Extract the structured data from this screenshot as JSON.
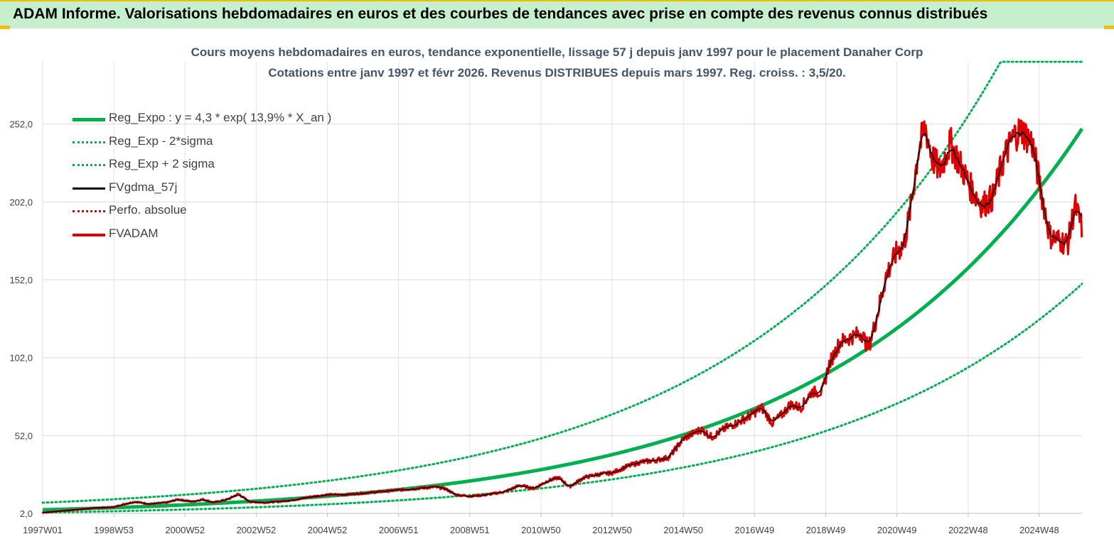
{
  "header": {
    "title": "ADAM Informe. Valorisations hebdomadaires en euros et des courbes de tendances avec prise en compte des revenus connus distribués"
  },
  "chart_data": {
    "type": "line",
    "title": "Cours moyens hebdomadaires en euros, tendance exponentielle, lissage 57 j depuis janv 1997 pour le placement Danaher Corp",
    "subtitle": "Cotations entre janv 1997 et févr 2026. Revenus DISTRIBUES depuis mars 1997. Reg. croiss. : 3,5/20.",
    "x_ticks": [
      "1997W01",
      "1998W53",
      "2000W52",
      "2002W52",
      "2004W52",
      "2006W51",
      "2008W51",
      "2010W50",
      "2012W50",
      "2014W50",
      "2016W49",
      "2018W49",
      "2020W49",
      "2022W48",
      "2024W48"
    ],
    "x_range": [
      1997.0,
      2026.2
    ],
    "y_ticks": [
      "2,0",
      "52,0",
      "102,0",
      "152,0",
      "202,0",
      "252,0"
    ],
    "y_range": [
      2.0,
      292.0
    ],
    "grid": true,
    "legend_position": "top-left",
    "regression": {
      "a": 4.3,
      "rate": 0.139,
      "sigma_factor": 2
    },
    "series": [
      {
        "name": "Reg_Expo : y = 4,3 * exp( 13,9% *  X_an )",
        "color": "#00b050",
        "style": "solid-thick"
      },
      {
        "name": "Reg_Exp - 2*sigma",
        "color": "#00b050",
        "style": "dotted"
      },
      {
        "name": "Reg_Exp + 2 sigma",
        "color": "#00b050",
        "style": "dotted"
      },
      {
        "name": "FVgdma_57j",
        "color": "#000000",
        "style": "solid-thin"
      },
      {
        "name": "Perfo. absolue",
        "color": "#e00000",
        "style": "dotted"
      },
      {
        "name": "FVADAM",
        "color": "#e00000",
        "style": "solid",
        "points": [
          [
            1997.0,
            2.5
          ],
          [
            1997.5,
            3.5
          ],
          [
            1998.0,
            4.5
          ],
          [
            1998.5,
            5.5
          ],
          [
            1999.0,
            6.0
          ],
          [
            1999.3,
            8.0
          ],
          [
            1999.6,
            9.5
          ],
          [
            2000.0,
            8.0
          ],
          [
            2000.5,
            9.0
          ],
          [
            2000.8,
            11.0
          ],
          [
            2001.2,
            9.5
          ],
          [
            2001.5,
            11.0
          ],
          [
            2001.8,
            9.0
          ],
          [
            2002.2,
            11.0
          ],
          [
            2002.5,
            14.5
          ],
          [
            2002.8,
            9.5
          ],
          [
            2003.2,
            9.0
          ],
          [
            2003.6,
            9.5
          ],
          [
            2004.0,
            10.5
          ],
          [
            2004.5,
            12.5
          ],
          [
            2005.0,
            14.0
          ],
          [
            2005.5,
            14.0
          ],
          [
            2006.0,
            15.0
          ],
          [
            2006.5,
            16.0
          ],
          [
            2007.0,
            17.0
          ],
          [
            2007.5,
            18.0
          ],
          [
            2008.0,
            19.0
          ],
          [
            2008.3,
            18.0
          ],
          [
            2008.6,
            14.0
          ],
          [
            2009.0,
            13.0
          ],
          [
            2009.5,
            14.0
          ],
          [
            2010.0,
            16.0
          ],
          [
            2010.4,
            20.0
          ],
          [
            2010.8,
            18.0
          ],
          [
            2011.2,
            23.0
          ],
          [
            2011.5,
            25.0
          ],
          [
            2011.8,
            19.0
          ],
          [
            2012.2,
            25.0
          ],
          [
            2012.6,
            27.0
          ],
          [
            2013.0,
            28.0
          ],
          [
            2013.4,
            32.0
          ],
          [
            2013.8,
            35.0
          ],
          [
            2014.2,
            36.0
          ],
          [
            2014.6,
            38.0
          ],
          [
            2015.0,
            50.0
          ],
          [
            2015.5,
            56.0
          ],
          [
            2015.8,
            51.0
          ],
          [
            2016.2,
            57.0
          ],
          [
            2016.5,
            60.0
          ],
          [
            2016.9,
            65.0
          ],
          [
            2017.2,
            70.0
          ],
          [
            2017.5,
            60.0
          ],
          [
            2017.8,
            66.0
          ],
          [
            2018.0,
            72.0
          ],
          [
            2018.3,
            70.0
          ],
          [
            2018.6,
            80.0
          ],
          [
            2018.9,
            80.0
          ],
          [
            2019.1,
            98.0
          ],
          [
            2019.4,
            112.0
          ],
          [
            2019.7,
            115.0
          ],
          [
            2020.0,
            118.0
          ],
          [
            2020.2,
            108.0
          ],
          [
            2020.4,
            125.0
          ],
          [
            2020.7,
            155.0
          ],
          [
            2021.0,
            170.0
          ],
          [
            2021.2,
            175.0
          ],
          [
            2021.4,
            200.0
          ],
          [
            2021.6,
            235.0
          ],
          [
            2021.8,
            250.0
          ],
          [
            2022.0,
            230.0
          ],
          [
            2022.2,
            222.0
          ],
          [
            2022.5,
            240.0
          ],
          [
            2022.8,
            225.0
          ],
          [
            2023.1,
            210.0
          ],
          [
            2023.4,
            200.0
          ],
          [
            2023.7,
            205.0
          ],
          [
            2024.0,
            230.0
          ],
          [
            2024.3,
            245.0
          ],
          [
            2024.5,
            248.0
          ],
          [
            2024.8,
            240.0
          ],
          [
            2025.0,
            215.0
          ],
          [
            2025.3,
            180.0
          ],
          [
            2025.5,
            178.0
          ],
          [
            2025.8,
            175.0
          ],
          [
            2026.0,
            200.0
          ],
          [
            2026.2,
            185.0
          ]
        ]
      }
    ]
  }
}
